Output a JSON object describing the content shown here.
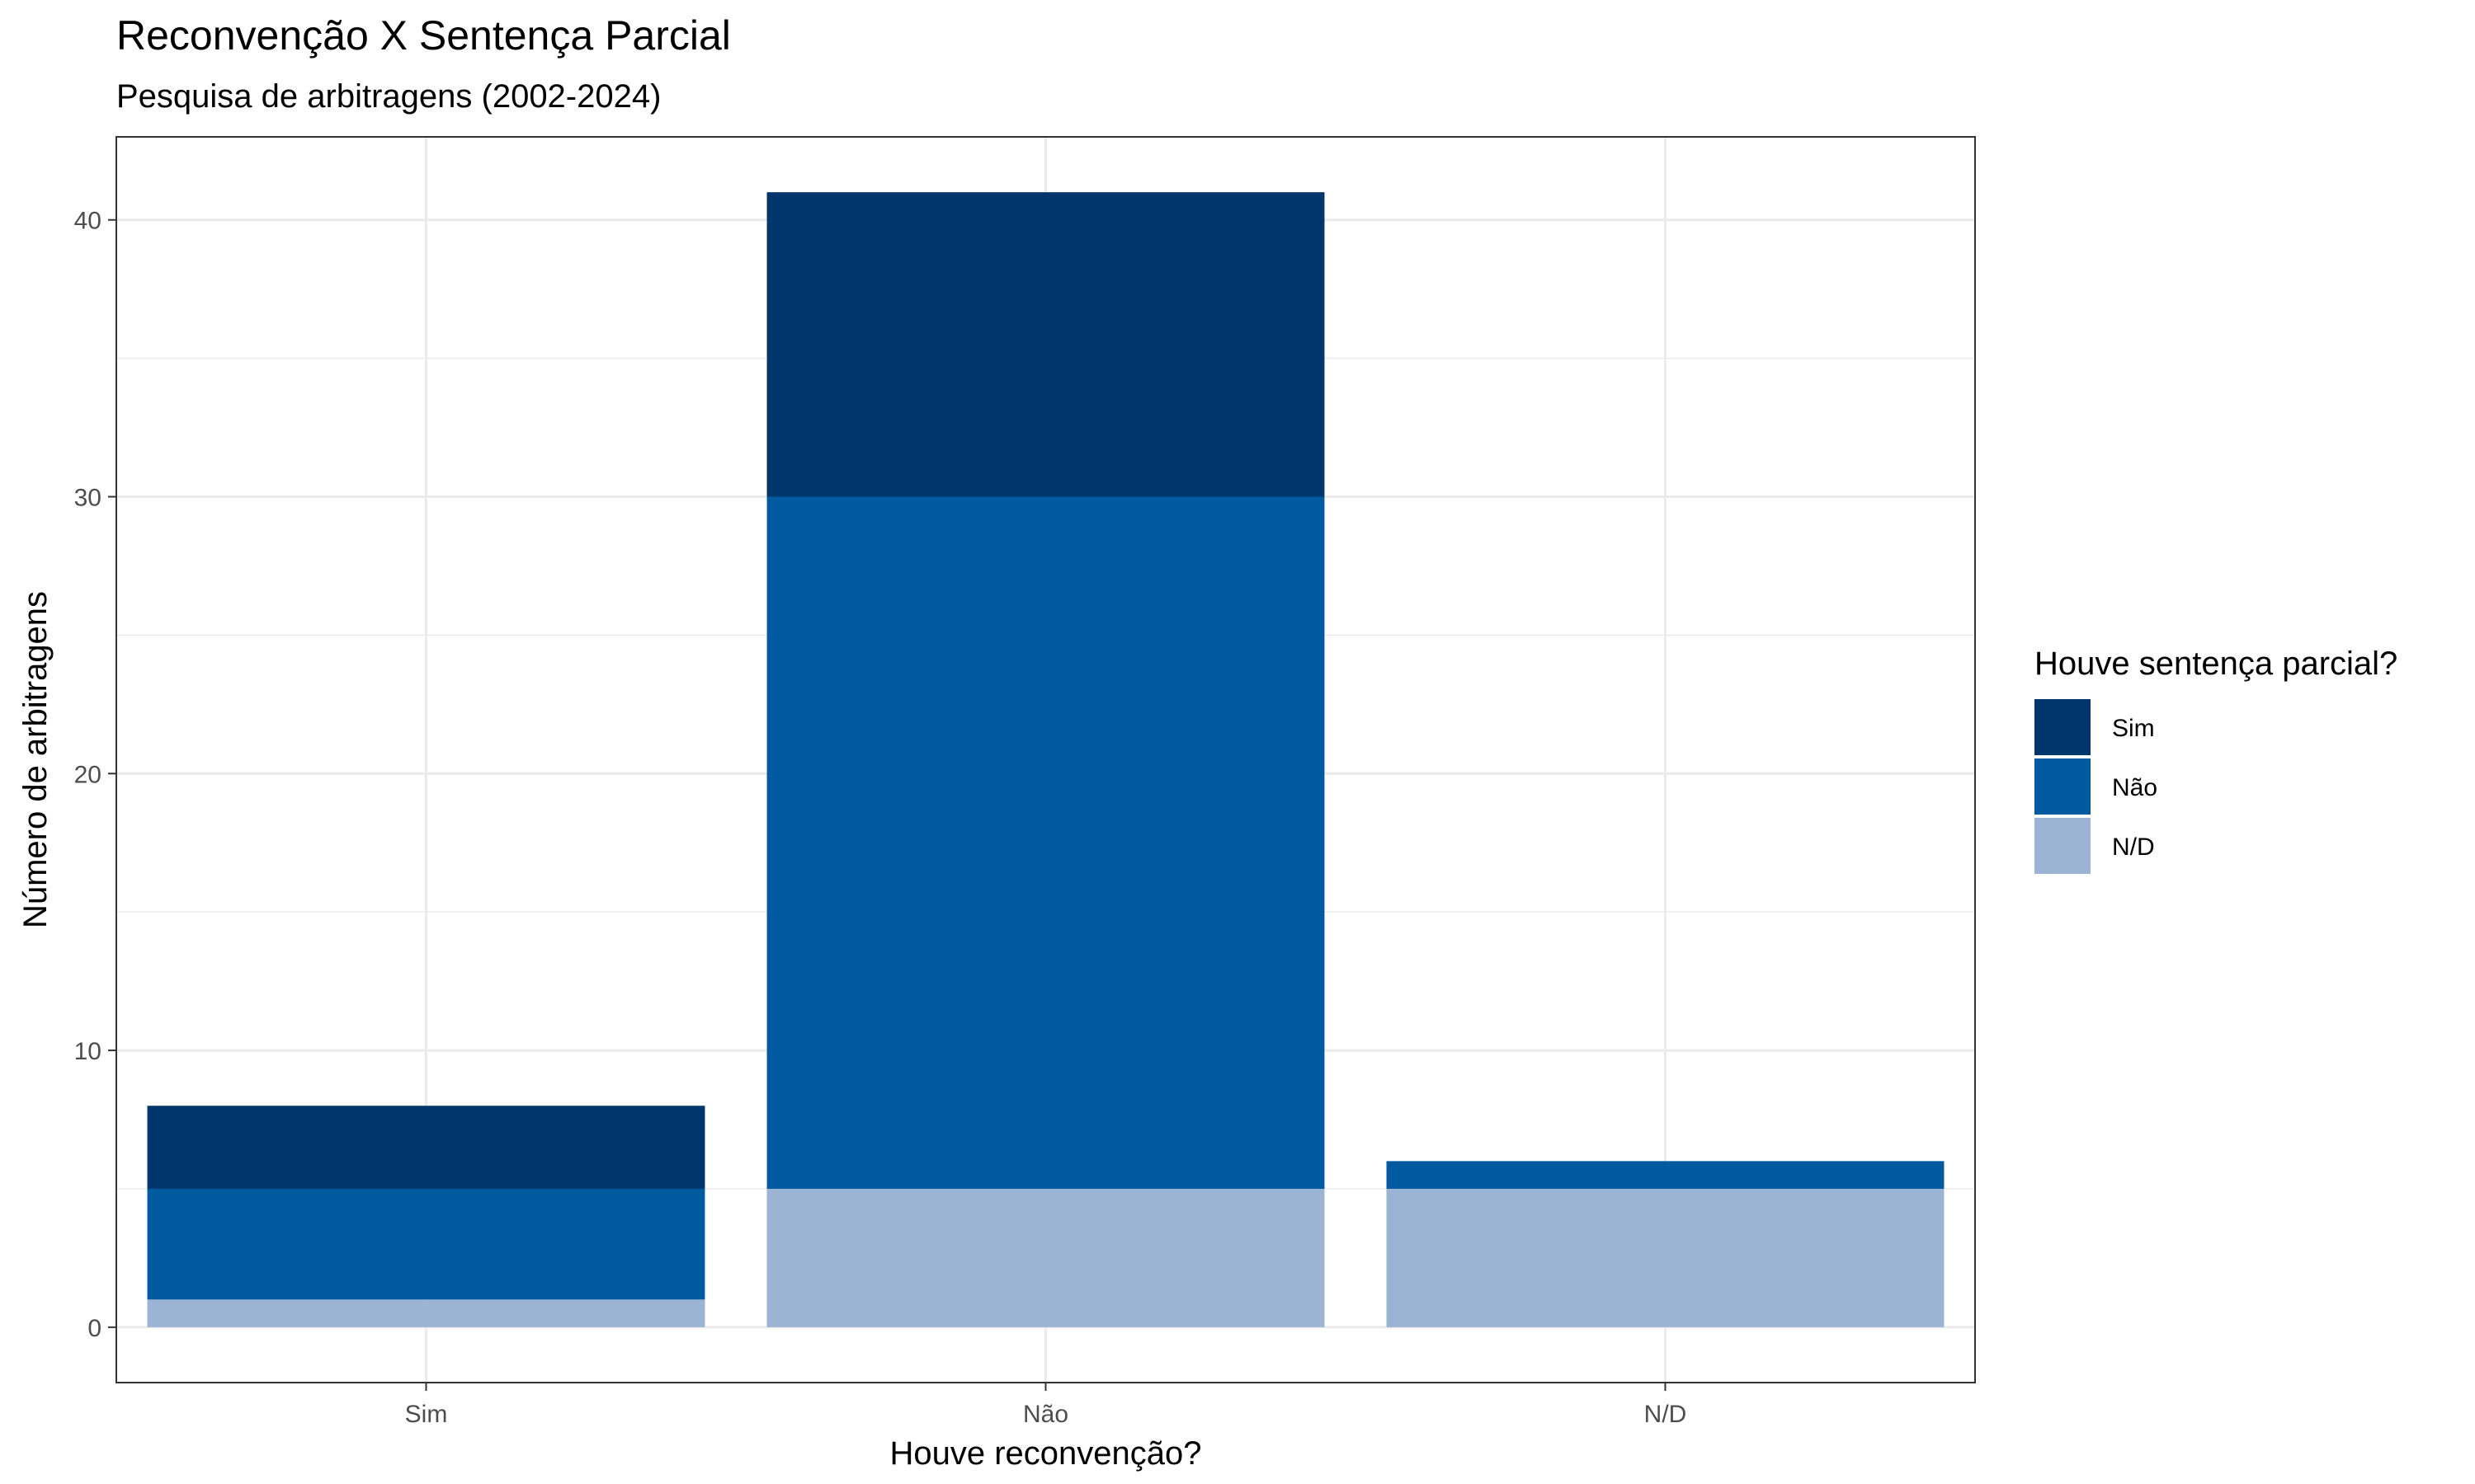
{
  "chart_data": {
    "type": "bar",
    "stacked": true,
    "title": "Reconvenção X Sentença Parcial",
    "subtitle": "Pesquisa de arbitragens (2002-2024)",
    "xlabel": "Houve reconvenção?",
    "ylabel": "Número de arbitragens",
    "categories": [
      "Sim",
      "Não",
      "N/D"
    ],
    "series": [
      {
        "name": "Sim",
        "color": "#00366B",
        "values": [
          3,
          11,
          0
        ]
      },
      {
        "name": "Não",
        "color": "#005AA0",
        "values": [
          4,
          25,
          1
        ]
      },
      {
        "name": "N/D",
        "color": "#9CB4D4",
        "values": [
          1,
          5,
          5
        ]
      }
    ],
    "stack_order": [
      "N/D",
      "Não",
      "Sim"
    ],
    "ylim": [
      -2,
      43
    ],
    "yticks": [
      0,
      10,
      20,
      30,
      40
    ],
    "grid": true,
    "legend": {
      "title": "Houve sentença parcial?",
      "position": "right"
    }
  }
}
